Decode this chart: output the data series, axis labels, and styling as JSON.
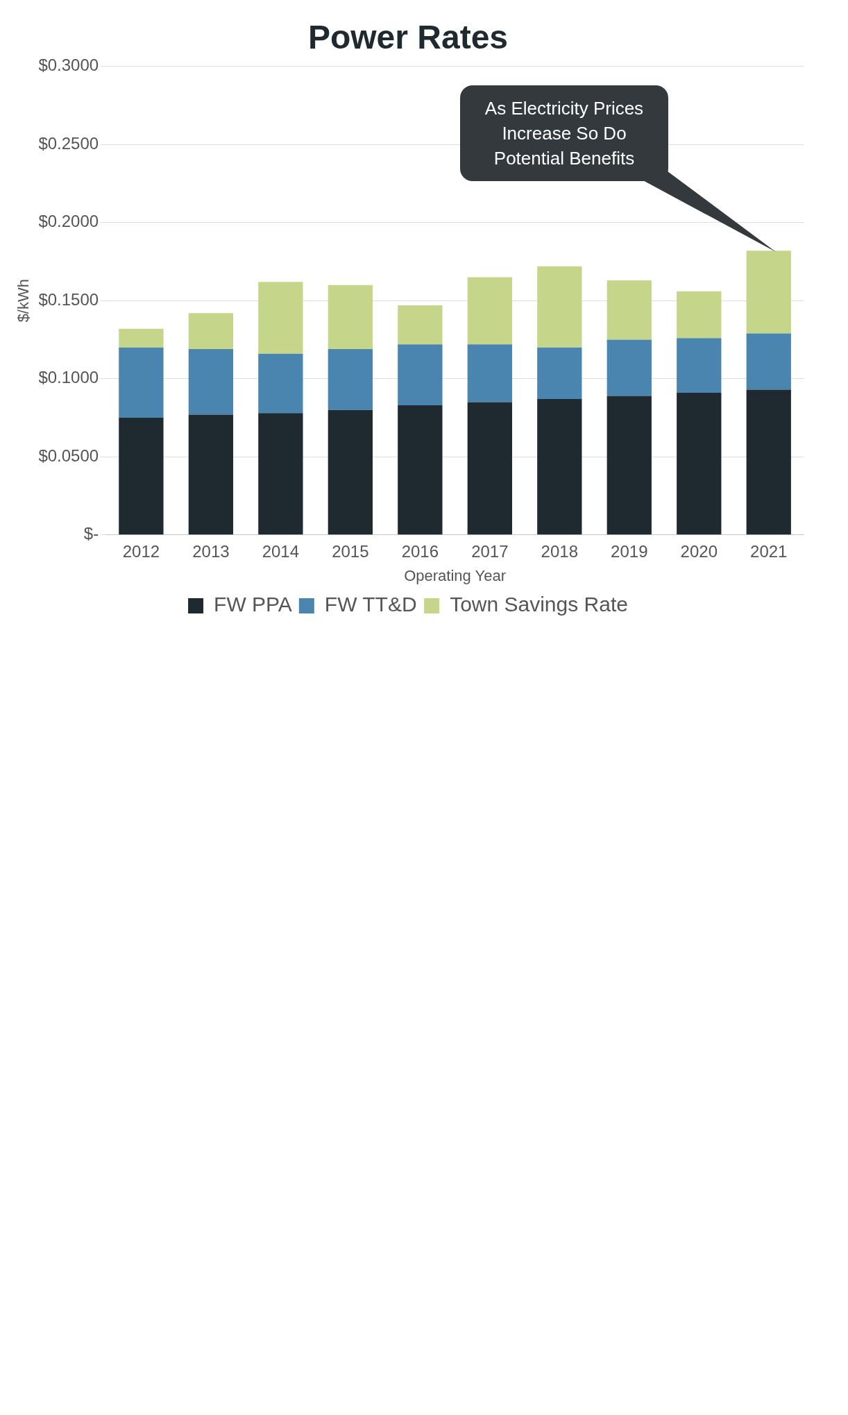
{
  "chart_data": {
    "type": "bar",
    "title": "Power Rates",
    "ylabel": "$/kWh",
    "xlabel": "Operating Year",
    "stacked": true,
    "grid": "y",
    "legend": "bottom",
    "categories": [
      "2012",
      "2013",
      "2014",
      "2015",
      "2016",
      "2017",
      "2018",
      "2019",
      "2020",
      "2021"
    ],
    "series": [
      {
        "name": "FW PPA",
        "color": "#1f2a30",
        "values": [
          0.075,
          0.077,
          0.078,
          0.08,
          0.083,
          0.085,
          0.087,
          0.089,
          0.091,
          0.093
        ]
      },
      {
        "name": "FW TT&D",
        "color": "#4a85b0",
        "values": [
          0.045,
          0.042,
          0.038,
          0.039,
          0.039,
          0.037,
          0.033,
          0.036,
          0.035,
          0.036
        ]
      },
      {
        "name": "Town Savings Rate",
        "color": "#c5d68a",
        "values": [
          0.012,
          0.023,
          0.046,
          0.041,
          0.025,
          0.043,
          0.052,
          0.038,
          0.03,
          0.053
        ]
      }
    ],
    "ylim": [
      0,
      0.3
    ],
    "yticks": [
      {
        "value": 0,
        "label": "$-"
      },
      {
        "value": 0.05,
        "label": "$0.0500"
      },
      {
        "value": 0.1,
        "label": "$0.1000"
      },
      {
        "value": 0.15,
        "label": "$0.1500"
      },
      {
        "value": 0.2,
        "label": "$0.2000"
      },
      {
        "value": 0.25,
        "label": "$0.2500"
      },
      {
        "value": 0.3,
        "label": "$0.3000"
      }
    ],
    "annotations": [
      "As Electricity Prices Increase So Do Potential Benefits"
    ]
  }
}
